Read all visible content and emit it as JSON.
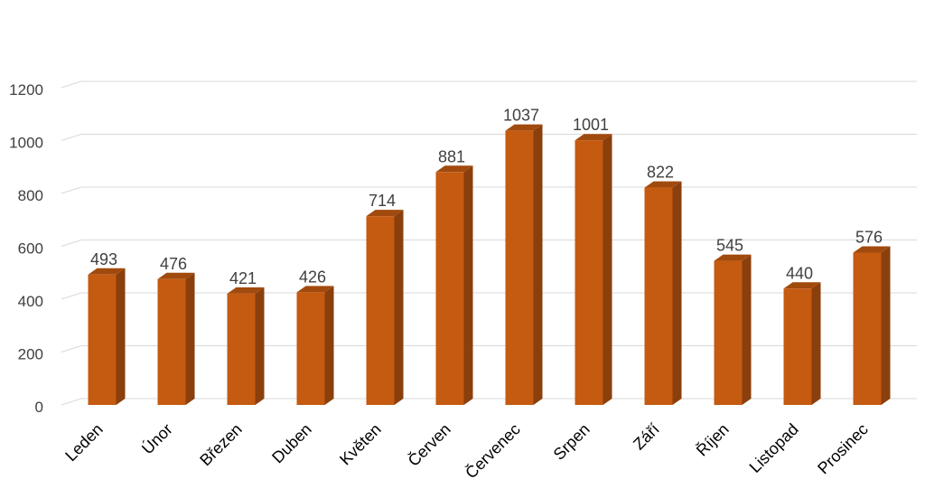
{
  "chart_data": {
    "type": "bar",
    "style": "3d-column",
    "categories": [
      "Leden",
      "Únor",
      "Březen",
      "Duben",
      "Květen",
      "Červen",
      "Červenec",
      "Srpen",
      "Září",
      "Říjen",
      "Listopad",
      "Prosinec"
    ],
    "values": [
      493,
      476,
      421,
      426,
      714,
      881,
      1037,
      1001,
      822,
      545,
      440,
      576
    ],
    "title": "",
    "xlabel": "",
    "ylabel": "",
    "ylim": [
      0,
      1200
    ],
    "yticks": [
      0,
      200,
      400,
      600,
      800,
      1000,
      1200
    ],
    "grid": true,
    "legend": "none",
    "data_labels": true,
    "colors": {
      "front": "#c55a11",
      "side": "#8a3f0c",
      "top": "#a14a0e",
      "grid": "#d9d9d9"
    }
  }
}
